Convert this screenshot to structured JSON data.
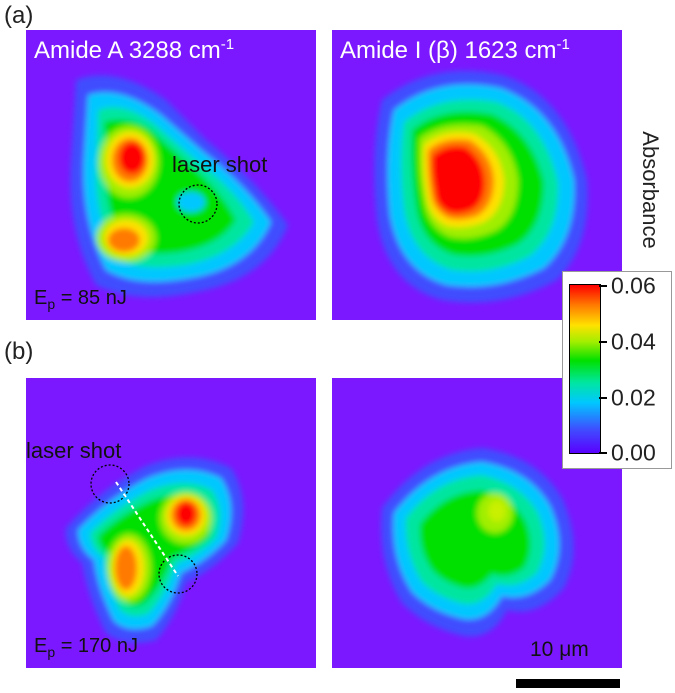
{
  "panels": {
    "a": {
      "letter": "(a)",
      "left_title": "Amide A 3288 cm",
      "left_title_sup": "-1",
      "right_title": "Amide I (β) 1623 cm",
      "right_title_sup": "-1",
      "laser_label": "laser shot",
      "ep_main": "E",
      "ep_sub": "p",
      "ep_value": " = 85 nJ"
    },
    "b": {
      "letter": "(b)",
      "laser_label": "laser shot",
      "ep_main": "E",
      "ep_sub": "p",
      "ep_value": " = 170 nJ"
    }
  },
  "colorbar": {
    "label": "Absorbance",
    "ticks": [
      "0.06",
      "0.04",
      "0.02",
      "0.00"
    ],
    "colors": {
      "low": "#5a00ff",
      "cyan": "#00c8ff",
      "green": "#00e000",
      "yellow": "#ffe100",
      "high": "#ff0000"
    }
  },
  "scale_bar": {
    "label": "10 μm"
  },
  "colors": {
    "background_map": "#7b18ff",
    "dashed_line": "#ffffff",
    "circle": "#000000"
  }
}
